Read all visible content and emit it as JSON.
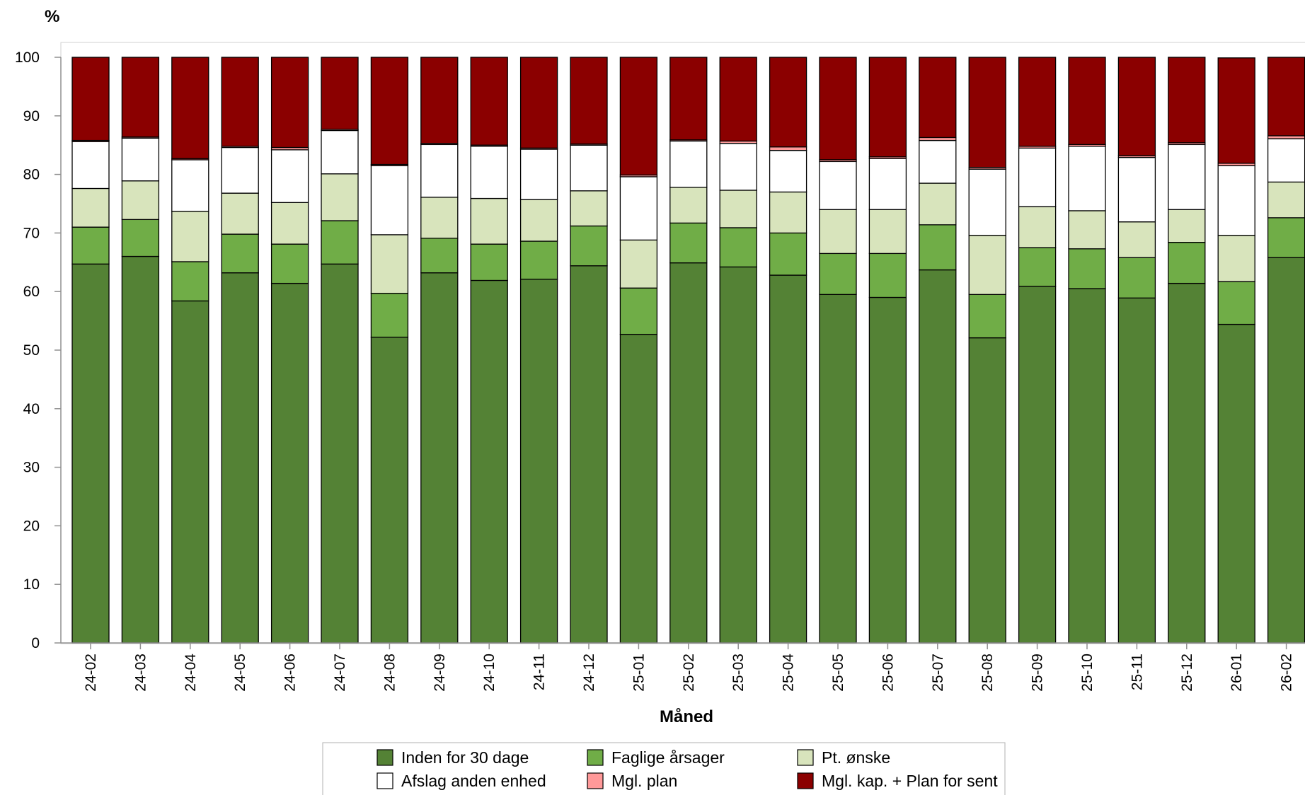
{
  "chart_data": {
    "type": "bar",
    "stacked": true,
    "ylabel": "%",
    "xlabel": "Måned",
    "ylim": [
      0,
      100
    ],
    "yticks": [
      0,
      10,
      20,
      30,
      40,
      50,
      60,
      70,
      80,
      90,
      100
    ],
    "grid": false,
    "legend_position": "bottom",
    "categories": [
      "24-02",
      "24-03",
      "24-04",
      "24-05",
      "24-06",
      "24-07",
      "24-08",
      "24-09",
      "24-10",
      "24-11",
      "24-12",
      "25-01",
      "25-02",
      "25-03",
      "25-04",
      "25-05",
      "25-06",
      "25-07",
      "25-08",
      "25-09",
      "25-10",
      "25-11",
      "25-12",
      "26-01",
      "26-02"
    ],
    "series": [
      {
        "name": "Inden for 30 dage",
        "color": "#548235",
        "values": [
          64.7,
          66.0,
          58.4,
          63.2,
          61.4,
          64.7,
          52.2,
          63.2,
          61.9,
          62.1,
          64.4,
          52.7,
          64.9,
          64.2,
          62.8,
          59.5,
          59.0,
          63.7,
          52.1,
          60.9,
          60.5,
          58.9,
          61.4,
          54.4,
          65.8
        ]
      },
      {
        "name": "Faglige årsager",
        "color": "#70AD47",
        "values": [
          6.3,
          6.3,
          6.7,
          6.6,
          6.7,
          7.4,
          7.5,
          5.9,
          6.2,
          6.5,
          6.8,
          7.9,
          6.8,
          6.7,
          7.2,
          7.0,
          7.5,
          7.7,
          7.4,
          6.6,
          6.8,
          6.9,
          7.0,
          7.3,
          6.8
        ]
      },
      {
        "name": "Pt. ønske",
        "color": "#D8E4BC",
        "values": [
          6.6,
          6.6,
          8.6,
          7.0,
          7.1,
          8.0,
          10.0,
          7.0,
          7.8,
          7.1,
          6.0,
          8.2,
          6.1,
          6.4,
          7.0,
          7.5,
          7.5,
          7.1,
          10.1,
          7.0,
          6.5,
          6.1,
          5.6,
          7.9,
          6.1
        ]
      },
      {
        "name": "Afslag anden enhed",
        "color": "#FFFFFF",
        "values": [
          8.0,
          7.3,
          8.8,
          7.8,
          9.0,
          7.4,
          11.8,
          9.0,
          8.9,
          8.6,
          7.8,
          10.8,
          7.9,
          8.0,
          7.1,
          8.2,
          8.7,
          7.3,
          11.3,
          10.0,
          11.0,
          11.0,
          11.1,
          11.9,
          7.4
        ]
      },
      {
        "name": "Mgl. plan",
        "color": "#FF9999",
        "values": [
          0.2,
          0.2,
          0.2,
          0.2,
          0.4,
          0.2,
          0.2,
          0.2,
          0.2,
          0.2,
          0.2,
          0.3,
          0.2,
          0.4,
          0.6,
          0.3,
          0.3,
          0.5,
          0.3,
          0.3,
          0.3,
          0.3,
          0.3,
          0.4,
          0.5
        ]
      },
      {
        "name": "Mgl. kap. + Plan for sent",
        "color": "#8B0000",
        "values": [
          14.2,
          13.6,
          17.3,
          15.2,
          15.4,
          12.3,
          18.3,
          14.7,
          15.0,
          15.5,
          14.8,
          20.1,
          14.1,
          14.3,
          15.3,
          17.5,
          17.0,
          13.7,
          18.8,
          15.2,
          14.9,
          16.8,
          14.6,
          18.0,
          13.4
        ]
      }
    ]
  }
}
